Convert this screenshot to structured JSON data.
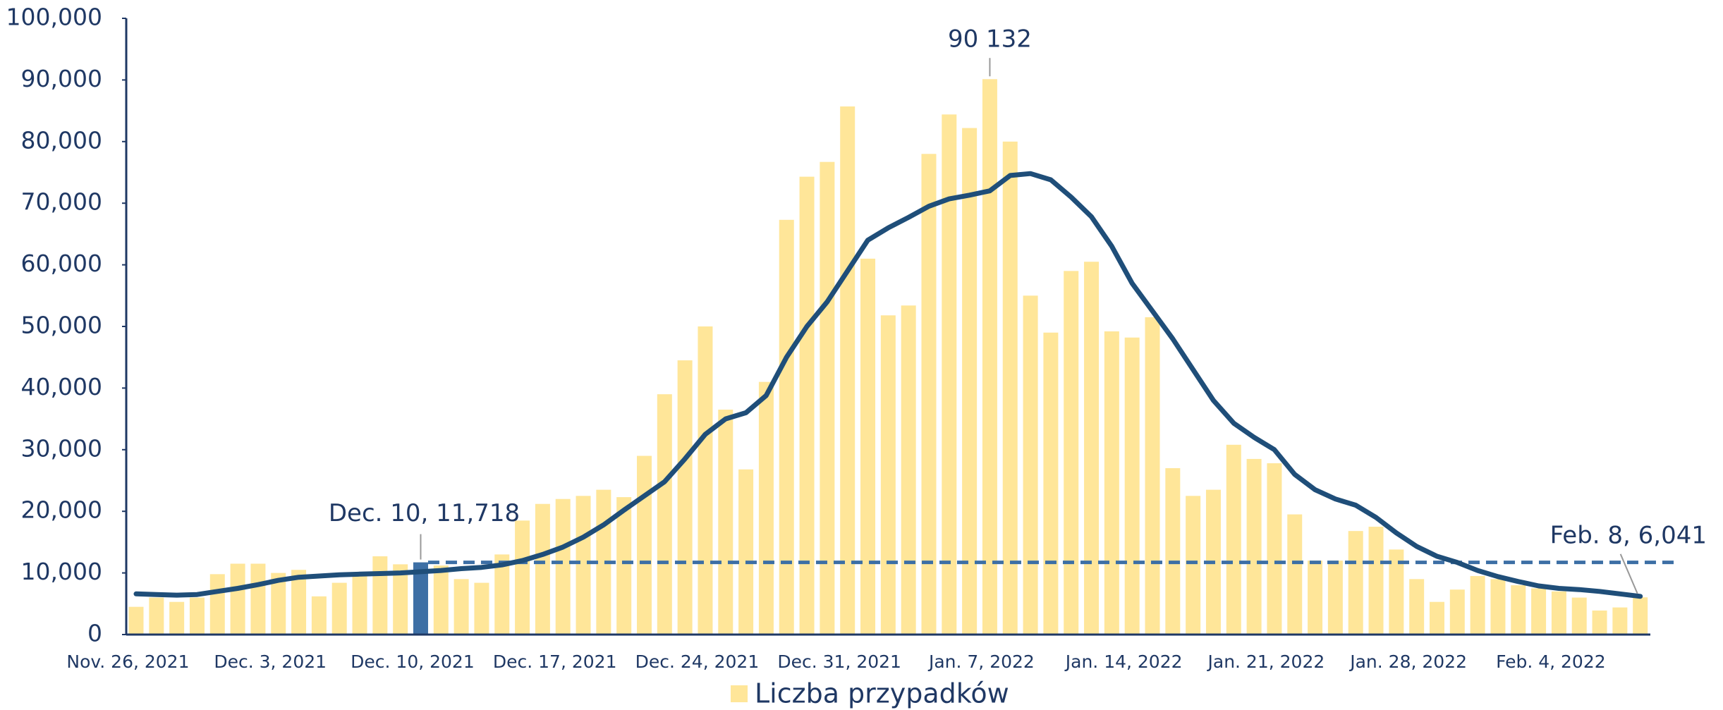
{
  "chart_data": {
    "type": "bar",
    "categories": [
      "Nov. 26, 2021",
      null,
      null,
      null,
      null,
      null,
      null,
      "Dec. 3, 2021",
      null,
      null,
      null,
      null,
      null,
      null,
      "Dec. 10, 2021",
      null,
      null,
      null,
      null,
      null,
      null,
      "Dec. 17, 2021",
      null,
      null,
      null,
      null,
      null,
      null,
      "Dec. 24, 2021",
      null,
      null,
      null,
      null,
      null,
      null,
      "Dec. 31, 2021",
      null,
      null,
      null,
      null,
      null,
      null,
      "Jan. 7, 2022",
      null,
      null,
      null,
      null,
      null,
      null,
      "Jan. 14, 2022",
      null,
      null,
      null,
      null,
      null,
      null,
      "Jan. 21, 2022",
      null,
      null,
      null,
      null,
      null,
      null,
      "Jan. 28, 2022",
      null,
      null,
      null,
      null,
      null,
      null,
      "Feb. 4, 2022",
      null,
      null,
      null,
      null
    ],
    "series": [
      {
        "name": "Liczba przypadków",
        "color": "#ffe699",
        "values": [
          4500,
          6000,
          5300,
          6000,
          9800,
          11500,
          11500,
          10000,
          10500,
          6200,
          8400,
          9500,
          12700,
          11400,
          11718,
          11200,
          9000,
          8400,
          13000,
          18500,
          21200,
          22000,
          22500,
          23500,
          22300,
          29000,
          39000,
          44500,
          50000,
          36500,
          26800,
          41000,
          67300,
          74300,
          76700,
          85700,
          61000,
          51800,
          53400,
          78000,
          84400,
          82200,
          90132,
          80000,
          55000,
          49000,
          59000,
          60500,
          49200,
          48200,
          51500,
          27000,
          22500,
          23500,
          30800,
          28500,
          27800,
          19500,
          12000,
          12000,
          16800,
          17500,
          13800,
          9000,
          5300,
          7300,
          9500,
          9000,
          8000,
          7500,
          7000,
          6000,
          3900,
          4400,
          6041
        ]
      }
    ],
    "line": {
      "color": "#1f4e79",
      "values": [
        6600,
        6500,
        6400,
        6500,
        7000,
        7500,
        8100,
        8800,
        9300,
        9500,
        9700,
        9800,
        9900,
        10000,
        10200,
        10400,
        10700,
        10900,
        11300,
        12000,
        13000,
        14200,
        15800,
        17800,
        20200,
        22500,
        24800,
        28500,
        32500,
        35000,
        36000,
        38800,
        45000,
        50000,
        54000,
        59000,
        64000,
        66000,
        67700,
        69500,
        70700,
        71300,
        72000,
        74500,
        74800,
        73800,
        71000,
        67800,
        63000,
        57000,
        52500,
        48000,
        43000,
        38000,
        34300,
        32000,
        30000,
        26000,
        23500,
        22000,
        21000,
        19000,
        16500,
        14300,
        12700,
        11700,
        10400,
        9400,
        8600,
        7900,
        7500,
        7300,
        7000,
        6600,
        6200
      ]
    },
    "highlight": {
      "index": 14,
      "color": "#3d6fa5"
    },
    "reference_line_color": "#3d6fa5",
    "annotations": [
      "90 132",
      "Dec. 10, 11,718",
      "Feb. 8, 6,041"
    ],
    "ylim": [
      0,
      100000
    ],
    "yticks": [
      0,
      {
        "value": 10000,
        "label": "10,000"
      },
      {
        "value": 20000,
        "label": "20,000"
      },
      {
        "value": 30000,
        "label": "30,000"
      },
      {
        "value": 40000,
        "label": "40,000"
      },
      {
        "value": 50000,
        "label": "50,000"
      },
      {
        "value": 60000,
        "label": "60,000"
      },
      {
        "value": 70000,
        "label": "70,000"
      },
      {
        "value": 80000,
        "label": "80,000"
      },
      {
        "value": 90000,
        "label": "90,000"
      },
      {
        "value": 100000,
        "label": "100,000"
      }
    ],
    "legend": "bottom"
  }
}
